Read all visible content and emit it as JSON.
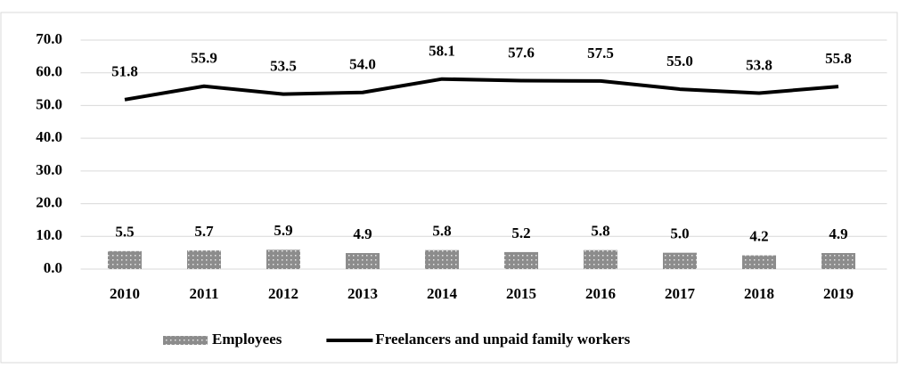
{
  "chart_data": {
    "type": "bar_line",
    "categories": [
      "2010",
      "2011",
      "2012",
      "2013",
      "2014",
      "2015",
      "2016",
      "2017",
      "2018",
      "2019"
    ],
    "series": [
      {
        "name": "Employees",
        "type": "bar",
        "color": "#8c8c8c",
        "values": [
          5.5,
          5.7,
          5.9,
          4.9,
          5.8,
          5.2,
          5.8,
          5.0,
          4.2,
          4.9
        ],
        "value_labels": [
          "5.5",
          "5.7",
          "5.9",
          "4.9",
          "5.8",
          "5.2",
          "5.8",
          "5.0",
          "4.2",
          "4.9"
        ]
      },
      {
        "name": "Freelancers and unpaid family workers",
        "type": "line",
        "color": "#000000",
        "values": [
          51.8,
          55.9,
          53.5,
          54.0,
          58.1,
          57.6,
          57.5,
          55.0,
          53.8,
          55.8
        ],
        "value_labels": [
          "51.8",
          "55.9",
          "53.5",
          "54.0",
          "58.1",
          "57.6",
          "57.5",
          "55.0",
          "53.8",
          "55.8"
        ]
      }
    ],
    "ylim": [
      0,
      70
    ],
    "yticks": [
      {
        "value": 0,
        "label": "0.0"
      },
      {
        "value": 10,
        "label": "10.0"
      },
      {
        "value": 20,
        "label": "20.0"
      },
      {
        "value": 30,
        "label": "30.0"
      },
      {
        "value": 40,
        "label": "40.0"
      },
      {
        "value": 50,
        "label": "50.0"
      },
      {
        "value": 60,
        "label": "60.0"
      },
      {
        "value": 70,
        "label": "70.0"
      }
    ],
    "grid": true,
    "legend": "bottom"
  }
}
